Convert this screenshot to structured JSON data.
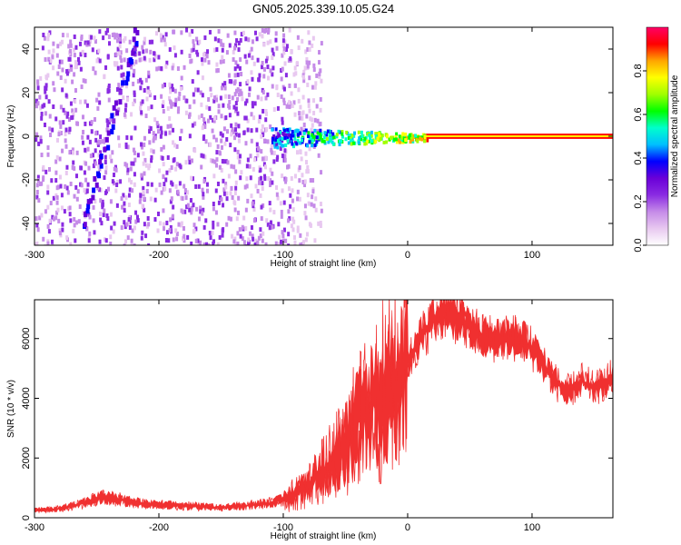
{
  "title": "GN05.2025.339.10.05.G24",
  "chart_data": [
    {
      "type": "heatmap",
      "name": "spectrogram",
      "xlabel": "Height of straight line (km)",
      "ylabel": "Frequency (Hz)",
      "xlim": [
        -300,
        165
      ],
      "ylim": [
        -50,
        50
      ],
      "xticks": [
        -300,
        -200,
        -100,
        0,
        100
      ],
      "yticks": [
        -40,
        -20,
        0,
        20,
        40
      ],
      "colorbar": {
        "label": "Normalized spectral amplitude",
        "range": [
          0,
          1
        ],
        "ticks": [
          "0.0",
          "0.2",
          "0.4",
          "0.6",
          "0.8"
        ],
        "colors": [
          "#ffffff",
          "#e8c8f0",
          "#c58be8",
          "#8a2be2",
          "#6a00d8",
          "#0000ff",
          "#00bfff",
          "#00ffcc",
          "#00ff00",
          "#a0ff00",
          "#ffff00",
          "#ffa500",
          "#ff0000",
          "#ff0066"
        ]
      },
      "features": {
        "carrier_line": {
          "x_start": 15,
          "x_end": 165,
          "freq_hz": 0,
          "amplitude": 1.0
        },
        "carrier_spread": {
          "x_start": -110,
          "x_end": 15,
          "freq_hz": 0,
          "amplitude": 0.5
        },
        "diagonal_streak": {
          "points": [
            [
              -262,
              -40
            ],
            [
              -250,
              -15
            ],
            [
              -238,
              10
            ],
            [
              -225,
              35
            ],
            [
              -218,
              50
            ]
          ]
        },
        "noise_region": {
          "x_start": -300,
          "x_end": -95
        }
      }
    },
    {
      "type": "line",
      "name": "snr",
      "xlabel": "Height of straight line (km)",
      "ylabel": "SNR (10 * v/v)",
      "xlim": [
        -300,
        165
      ],
      "ylim": [
        0,
        7300
      ],
      "xticks": [
        -300,
        -200,
        -100,
        0,
        100
      ],
      "yticks": [
        0,
        2000,
        4000,
        6000
      ],
      "series": [
        {
          "name": "SNR",
          "color": "#f03030",
          "x": [
            -300,
            -280,
            -260,
            -245,
            -230,
            -210,
            -190,
            -170,
            -150,
            -130,
            -110,
            -100,
            -90,
            -80,
            -70,
            -60,
            -50,
            -40,
            -30,
            -20,
            -10,
            0,
            10,
            20,
            30,
            40,
            50,
            60,
            70,
            80,
            90,
            100,
            110,
            120,
            130,
            140,
            150,
            165
          ],
          "values": [
            250,
            300,
            500,
            700,
            600,
            450,
            420,
            380,
            350,
            400,
            500,
            600,
            800,
            1100,
            1500,
            1900,
            2500,
            3200,
            3800,
            4200,
            4600,
            5200,
            6000,
            6600,
            6900,
            6700,
            6300,
            6100,
            6000,
            6050,
            6000,
            5700,
            5100,
            4500,
            4200,
            4600,
            4300,
            4700
          ]
        }
      ]
    }
  ]
}
